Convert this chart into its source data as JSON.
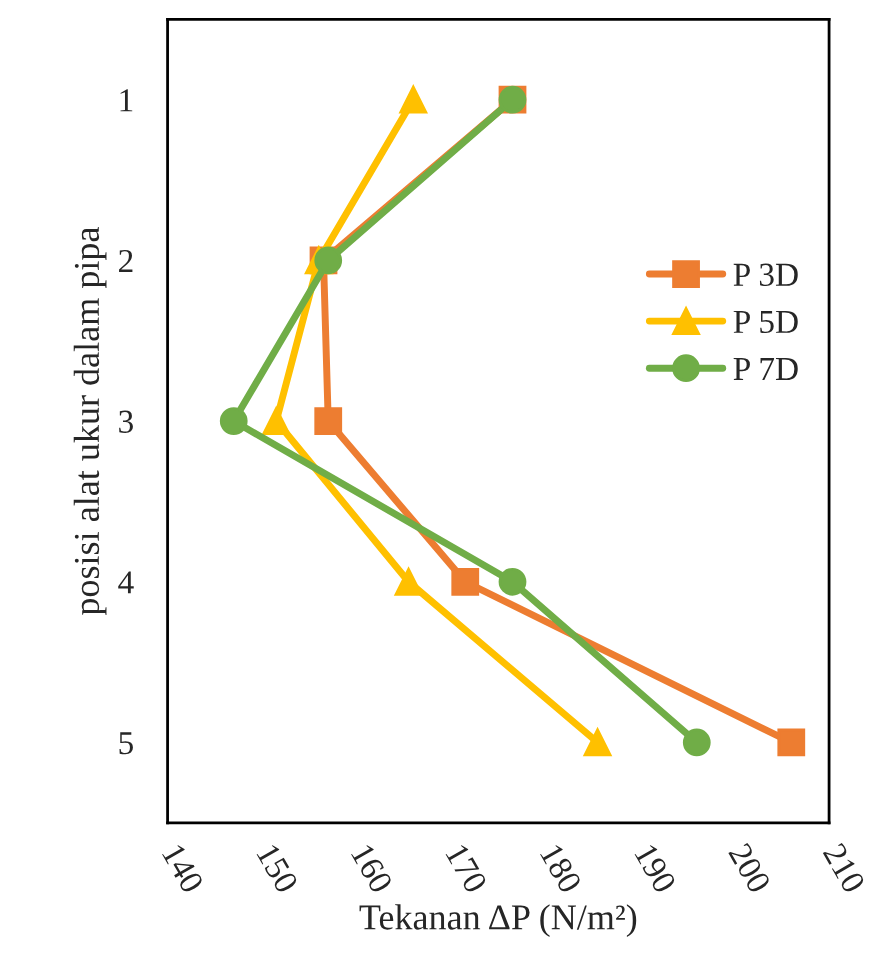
{
  "chart_data": {
    "type": "line",
    "xlabel": "Tekanan ΔP (N/m²)",
    "ylabel": "posisi alat ukur dalam pipa",
    "xlim": [
      140,
      210
    ],
    "xticks": [
      140,
      150,
      160,
      170,
      180,
      190,
      200,
      210
    ],
    "ylim": [
      5.5,
      0.5
    ],
    "yticks": [
      1,
      2,
      3,
      4,
      5
    ],
    "grid": false,
    "legend": "right",
    "series": [
      {
        "name": "P 3D",
        "color": "#ed7d31",
        "marker": "square",
        "x": [
          176.5,
          156.5,
          157,
          171.5,
          206
        ],
        "values": [
          1,
          2,
          3,
          4,
          5
        ]
      },
      {
        "name": "P 5D",
        "color": "#ffc000",
        "marker": "triangle",
        "x": [
          166,
          156,
          151.5,
          165.5,
          185.5
        ],
        "values": [
          1,
          2,
          3,
          4,
          5
        ]
      },
      {
        "name": "P 7D",
        "color": "#70ad47",
        "marker": "circle",
        "x": [
          176.5,
          157,
          147,
          176.5,
          196
        ],
        "values": [
          1,
          2,
          3,
          4,
          5
        ]
      }
    ]
  }
}
